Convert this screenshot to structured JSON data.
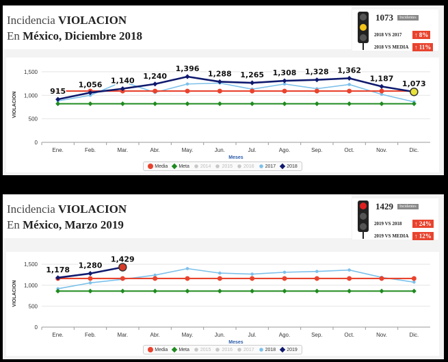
{
  "panels": [
    {
      "title_prefix": "Incidencia",
      "title_strong": "VIOLACION",
      "subtitle_prefix": "En",
      "subtitle_strong": "México,",
      "subtitle_suffix": "Diciembre 2018",
      "indicator": {
        "value": "1073",
        "tag": "Incidentes",
        "light": "yellow",
        "rows": [
          {
            "label": "2018 VS 2017",
            "badge": "↑ 8%"
          },
          {
            "label": "2018 VS MEDIA",
            "badge": "↑ 11%"
          }
        ]
      }
    },
    {
      "title_prefix": "Incidencia",
      "title_strong": "VIOLACION",
      "subtitle_prefix": "En",
      "subtitle_strong": "México,",
      "subtitle_suffix": "Marzo 2019",
      "indicator": {
        "value": "1429",
        "tag": "Incidentes",
        "light": "red",
        "rows": [
          {
            "label": "2019 VS 2018",
            "badge": "↑ 24%"
          },
          {
            "label": "2019 VS MEDIA",
            "badge": "↑ 12%"
          }
        ]
      }
    }
  ],
  "colors": {
    "media": "#e8432e",
    "meta": "#1f8a1f",
    "prev_year": "#7cc0ea",
    "curr_year": "#0f1a6e",
    "hidden": "#c8c8c8",
    "badge": "#e8432e"
  },
  "chart_data": [
    {
      "type": "line",
      "categories": [
        "Ene.",
        "Feb.",
        "Mar.",
        "Abr.",
        "May.",
        "Jun.",
        "Jul.",
        "Ago.",
        "Sep.",
        "Oct.",
        "Nov.",
        "Dic."
      ],
      "xlabel": "Meses",
      "ylabel": "VIOLACION",
      "ylim": [
        0,
        1600
      ],
      "yticks": [
        "0",
        "500",
        "1,000",
        "1,500"
      ],
      "legend": [
        {
          "name": "Media",
          "visible": true
        },
        {
          "name": "Meta",
          "visible": true
        },
        {
          "name": "2014",
          "visible": false
        },
        {
          "name": "2015",
          "visible": false
        },
        {
          "name": "2016",
          "visible": false
        },
        {
          "name": "2017",
          "visible": true
        },
        {
          "name": "2018",
          "visible": true
        }
      ],
      "series": [
        {
          "name": "Media",
          "values": [
            1090,
            1090,
            1090,
            1090,
            1090,
            1090,
            1090,
            1090,
            1090,
            1090,
            1090,
            1090
          ]
        },
        {
          "name": "Meta",
          "values": [
            820,
            820,
            820,
            820,
            820,
            820,
            820,
            820,
            820,
            820,
            820,
            820
          ]
        },
        {
          "name": "2017",
          "values": [
            880,
            1000,
            1290,
            1060,
            1240,
            1260,
            1130,
            1240,
            1140,
            1230,
            1020,
            860
          ]
        },
        {
          "name": "2018",
          "values": [
            915,
            1056,
            1140,
            1240,
            1396,
            1288,
            1265,
            1308,
            1328,
            1362,
            1187,
            1073
          ]
        }
      ],
      "data_labels": [
        "915",
        "1,056",
        "1,140",
        "1,240",
        "1,396",
        "1,288",
        "1,265",
        "1,308",
        "1,328",
        "1,362",
        "1,187",
        "1,073"
      ]
    },
    {
      "type": "line",
      "categories": [
        "Ene.",
        "Feb.",
        "Mar.",
        "Abr.",
        "May.",
        "Jun.",
        "Jul.",
        "Ago.",
        "Sep.",
        "Oct.",
        "Nov.",
        "Dic."
      ],
      "xlabel": "Meses",
      "ylabel": "VIOLACION",
      "ylim": [
        0,
        1600
      ],
      "yticks": [
        "0",
        "500",
        "1,000",
        "1,500"
      ],
      "legend": [
        {
          "name": "Media",
          "visible": true
        },
        {
          "name": "Meta",
          "visible": true
        },
        {
          "name": "2015",
          "visible": false
        },
        {
          "name": "2016",
          "visible": false
        },
        {
          "name": "2017",
          "visible": false
        },
        {
          "name": "2018",
          "visible": true
        },
        {
          "name": "2019",
          "visible": true
        }
      ],
      "series": [
        {
          "name": "Media",
          "values": [
            1160,
            1160,
            1160,
            1160,
            1160,
            1160,
            1160,
            1160,
            1160,
            1160,
            1160,
            1160
          ]
        },
        {
          "name": "Meta",
          "values": [
            860,
            860,
            860,
            860,
            860,
            860,
            860,
            860,
            860,
            860,
            860,
            860
          ]
        },
        {
          "name": "2018",
          "values": [
            915,
            1056,
            1140,
            1240,
            1396,
            1288,
            1265,
            1308,
            1328,
            1362,
            1187,
            1073
          ]
        },
        {
          "name": "2019",
          "values": [
            1178,
            1280,
            1429,
            null,
            null,
            null,
            null,
            null,
            null,
            null,
            null,
            null
          ]
        }
      ],
      "data_labels": [
        "1,178",
        "1,280",
        "1,429"
      ]
    }
  ]
}
